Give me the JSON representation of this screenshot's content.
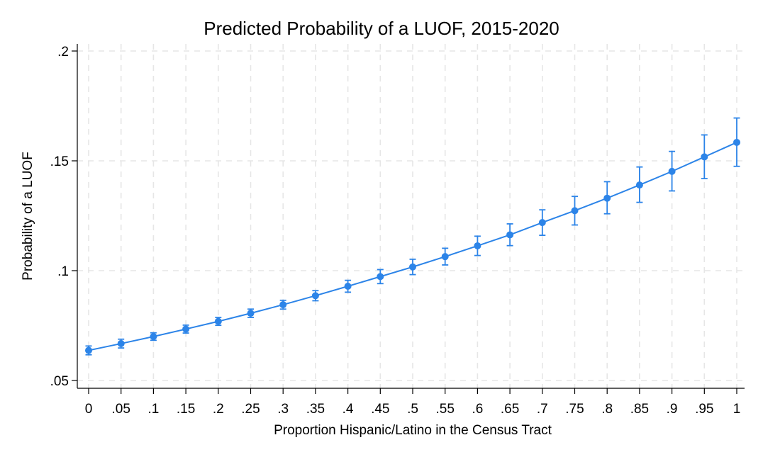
{
  "chart_data": {
    "type": "line",
    "title": "Predicted Probability of a LUOF, 2015-2020",
    "xlabel": "Proportion Hispanic/Latino in the Census Tract",
    "ylabel": "Probability of a LUOF",
    "xlim": [
      0,
      1
    ],
    "ylim": [
      0.05,
      0.2
    ],
    "x_ticks": [
      0,
      0.05,
      0.1,
      0.15,
      0.2,
      0.25,
      0.3,
      0.35,
      0.4,
      0.45,
      0.5,
      0.55,
      0.6,
      0.65,
      0.7,
      0.75,
      0.8,
      0.85,
      0.9,
      0.95,
      1
    ],
    "x_tick_labels": [
      "0",
      ".05",
      ".1",
      ".15",
      ".2",
      ".25",
      ".3",
      ".35",
      ".4",
      ".45",
      ".5",
      ".55",
      ".6",
      ".65",
      ".7",
      ".75",
      ".8",
      ".85",
      ".9",
      ".95",
      "1"
    ],
    "y_ticks": [
      0.05,
      0.1,
      0.15,
      0.2
    ],
    "y_tick_labels": [
      ".05",
      ".1",
      ".15",
      ".2"
    ],
    "grid": true,
    "series": [
      {
        "color": "#2c84e8",
        "x": [
          0,
          0.05,
          0.1,
          0.15,
          0.2,
          0.25,
          0.3,
          0.35,
          0.4,
          0.45,
          0.5,
          0.55,
          0.6,
          0.65,
          0.7,
          0.75,
          0.8,
          0.85,
          0.9,
          0.95,
          1
        ],
        "values": [
          0.0637,
          0.0668,
          0.07,
          0.0734,
          0.0769,
          0.0806,
          0.0845,
          0.0886,
          0.0929,
          0.0973,
          0.1017,
          0.1064,
          0.1113,
          0.1163,
          0.1219,
          0.1273,
          0.133,
          0.139,
          0.1452,
          0.1518,
          0.1584
        ],
        "ci_lower": [
          0.0617,
          0.0648,
          0.0683,
          0.0716,
          0.0751,
          0.0787,
          0.0825,
          0.0863,
          0.0902,
          0.0941,
          0.0982,
          0.1026,
          0.1069,
          0.1114,
          0.1161,
          0.1208,
          0.1259,
          0.1311,
          0.1363,
          0.1419,
          0.1475
        ],
        "ci_upper": [
          0.0657,
          0.0688,
          0.0717,
          0.0752,
          0.0787,
          0.0825,
          0.0865,
          0.0909,
          0.0956,
          0.1005,
          0.1052,
          0.1102,
          0.1157,
          0.1213,
          0.1277,
          0.1338,
          0.1405,
          0.1472,
          0.1543,
          0.1618,
          0.1695
        ]
      }
    ]
  }
}
